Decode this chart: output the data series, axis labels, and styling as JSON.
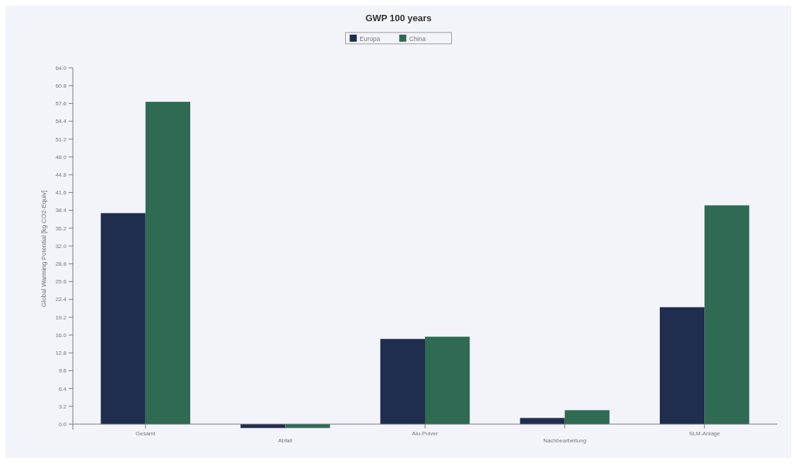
{
  "chart_data": {
    "type": "bar",
    "title": "GWP 100 years",
    "ylabel": "Global Warming Potential [kg CO2-Equiv]",
    "categories": [
      "Gesamt",
      "Abfall",
      "Alu-Pulver",
      "Nachbearbeitung",
      "SLM-Anlage"
    ],
    "series": [
      {
        "name": "Europa",
        "color": "#1f2d4f",
        "values": [
          37.9,
          -0.7,
          15.3,
          1.1,
          21.0
        ]
      },
      {
        "name": "China",
        "color": "#2e6b52",
        "values": [
          57.9,
          -0.7,
          15.7,
          2.5,
          39.3
        ]
      }
    ],
    "ylim": [
      -1.0,
      64.0
    ],
    "yticks": [
      {
        "value": 0,
        "label": "0.0"
      },
      3.2,
      6.4,
      9.6,
      12.8,
      {
        "value": 16,
        "label": "16.0"
      },
      19.2,
      22.4,
      25.6,
      28.8,
      {
        "value": 32,
        "label": "32.0"
      },
      35.2,
      38.4,
      41.6,
      44.8,
      {
        "value": 48,
        "label": "48.0"
      },
      51.2,
      54.4,
      57.6,
      60.8,
      {
        "value": 64,
        "label": "64.0"
      }
    ],
    "legend": "top",
    "grid": false
  }
}
